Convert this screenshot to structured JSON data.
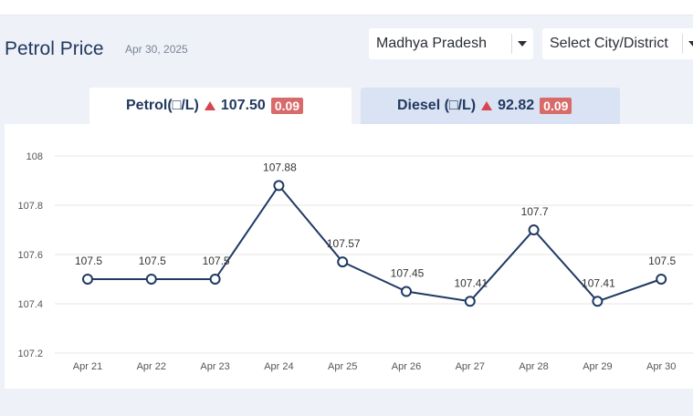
{
  "header": {
    "title": "Petrol Price",
    "date": "Apr 30, 2025",
    "state_select": "Madhya Pradesh",
    "city_select": "Select City/District"
  },
  "tabs": [
    {
      "label": "Petrol(□/L)",
      "price": "107.50",
      "change": "0.09",
      "direction": "up",
      "active": true
    },
    {
      "label": "Diesel (□/L)",
      "price": "92.82",
      "change": "0.09",
      "direction": "up",
      "active": false
    }
  ],
  "colors": {
    "line": "#1f3a63",
    "up_arrow": "#d64550",
    "badge": "#d96a6a",
    "title": "#22395e"
  },
  "chart_data": {
    "type": "line",
    "categories": [
      "Apr 21",
      "Apr 22",
      "Apr 23",
      "Apr 24",
      "Apr 25",
      "Apr 26",
      "Apr 27",
      "Apr 28",
      "Apr 29",
      "Apr 30"
    ],
    "series": [
      {
        "values": [
          107.5,
          107.5,
          107.5,
          107.88,
          107.57,
          107.45,
          107.41,
          107.7,
          107.41,
          107.5
        ]
      }
    ],
    "data_labels": [
      "107.5",
      "107.5",
      "107.5",
      "107.88",
      "107.57",
      "107.45",
      "107.41",
      "107.7",
      "107.41",
      "107.5"
    ],
    "y_ticks": [
      108,
      107.8,
      107.6,
      107.4,
      107.2
    ],
    "y_tick_labels": [
      "108",
      "107.8",
      "107.6",
      "107.4",
      "107.2"
    ],
    "ylim": [
      107.2,
      108
    ],
    "title": "",
    "xlabel": "",
    "ylabel": "",
    "grid": true,
    "legend": false
  }
}
